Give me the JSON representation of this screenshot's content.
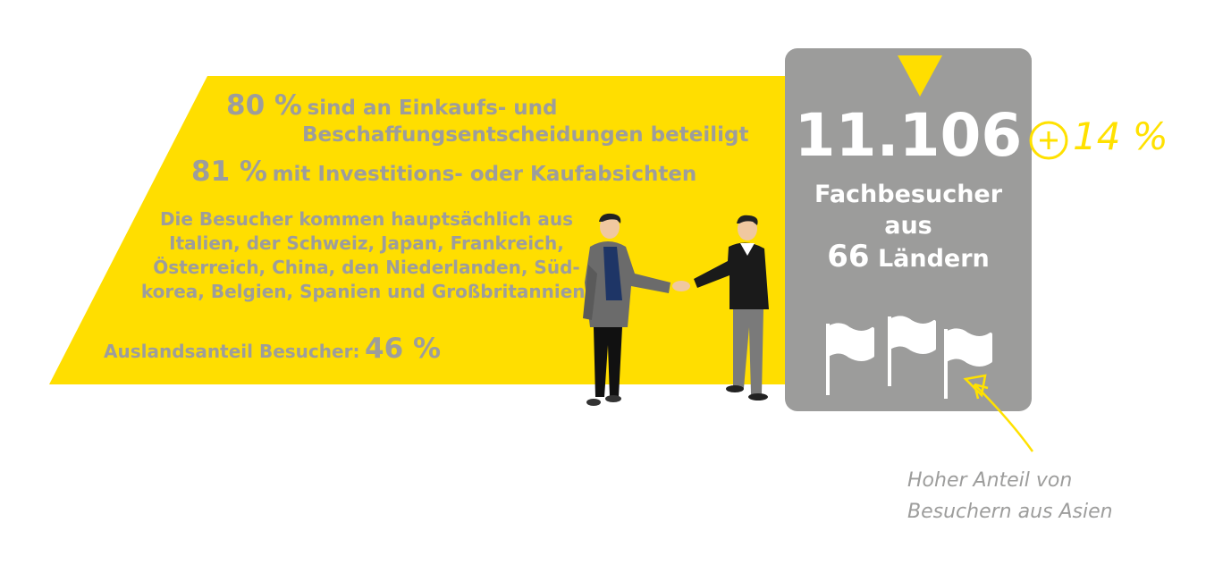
{
  "stats": {
    "stat1_value": "80 %",
    "stat1_text_line1": "sind an Einkaufs- und",
    "stat1_text_line2": "Beschaffungsentscheidungen beteiligt",
    "stat2_value": "81 %",
    "stat2_text": "mit Investitions- oder Kaufabsichten",
    "visitors_lines": [
      "Die Besucher kommen hauptsächlich aus",
      "Italien, der Schweiz, Japan, Frankreich,",
      "Österreich, China, den Niederlanden, Süd-",
      "korea, Belgien, Spanien und Großbritannien."
    ],
    "foreign_label": "Auslandsanteil Besucher:",
    "foreign_value": "46 %"
  },
  "totals": {
    "count": "11.106",
    "line1": "Fachbesucher",
    "line2": "aus",
    "countries_num": "66",
    "countries_word": "Ländern",
    "growth": "14 %"
  },
  "note": {
    "line1": "Hoher Anteil von",
    "line2": "Besuchern aus Asien"
  },
  "colors": {
    "yellow": "#ffde00",
    "grey_box": "#9c9c9b",
    "grey_text": "#9d9d9c",
    "white": "#ffffff"
  },
  "icons": [
    "flag-icon",
    "handshake-illustration",
    "plus-circle-icon",
    "arrow-icon",
    "triangle-icon"
  ]
}
